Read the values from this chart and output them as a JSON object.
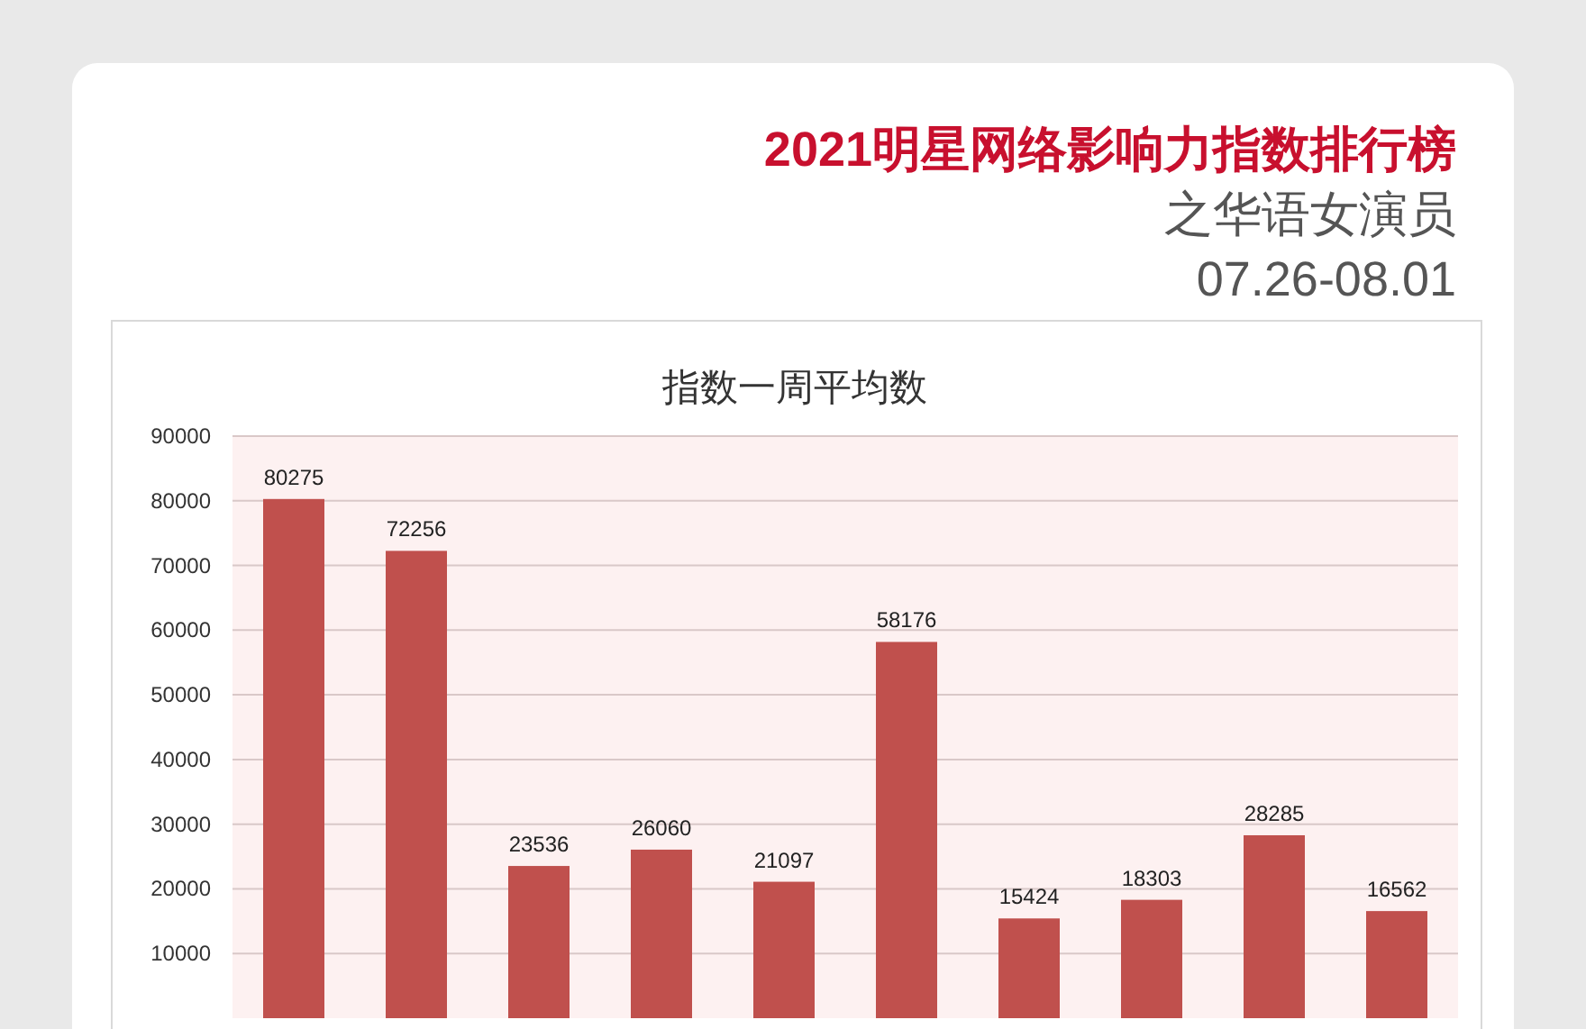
{
  "chart_data": {
    "type": "bar",
    "title": "指数一周平均数",
    "subtitle": "2021明星网络影响力指数排行榜",
    "annotations": [
      "之华语女演员",
      "07.26-08.01"
    ],
    "categories": [
      null,
      null,
      null,
      null,
      null,
      null,
      null,
      null,
      null,
      null
    ],
    "series": [
      {
        "color": "#c0504d",
        "values": [
          80275,
          72256,
          23536,
          26060,
          21097,
          58176,
          15424,
          18303,
          28285,
          16562
        ]
      }
    ],
    "ylim": [
      0,
      90000
    ],
    "yticks": [
      10000,
      20000,
      30000,
      40000,
      50000,
      60000,
      70000,
      80000,
      90000
    ],
    "grid": "y",
    "data_labels": true
  }
}
